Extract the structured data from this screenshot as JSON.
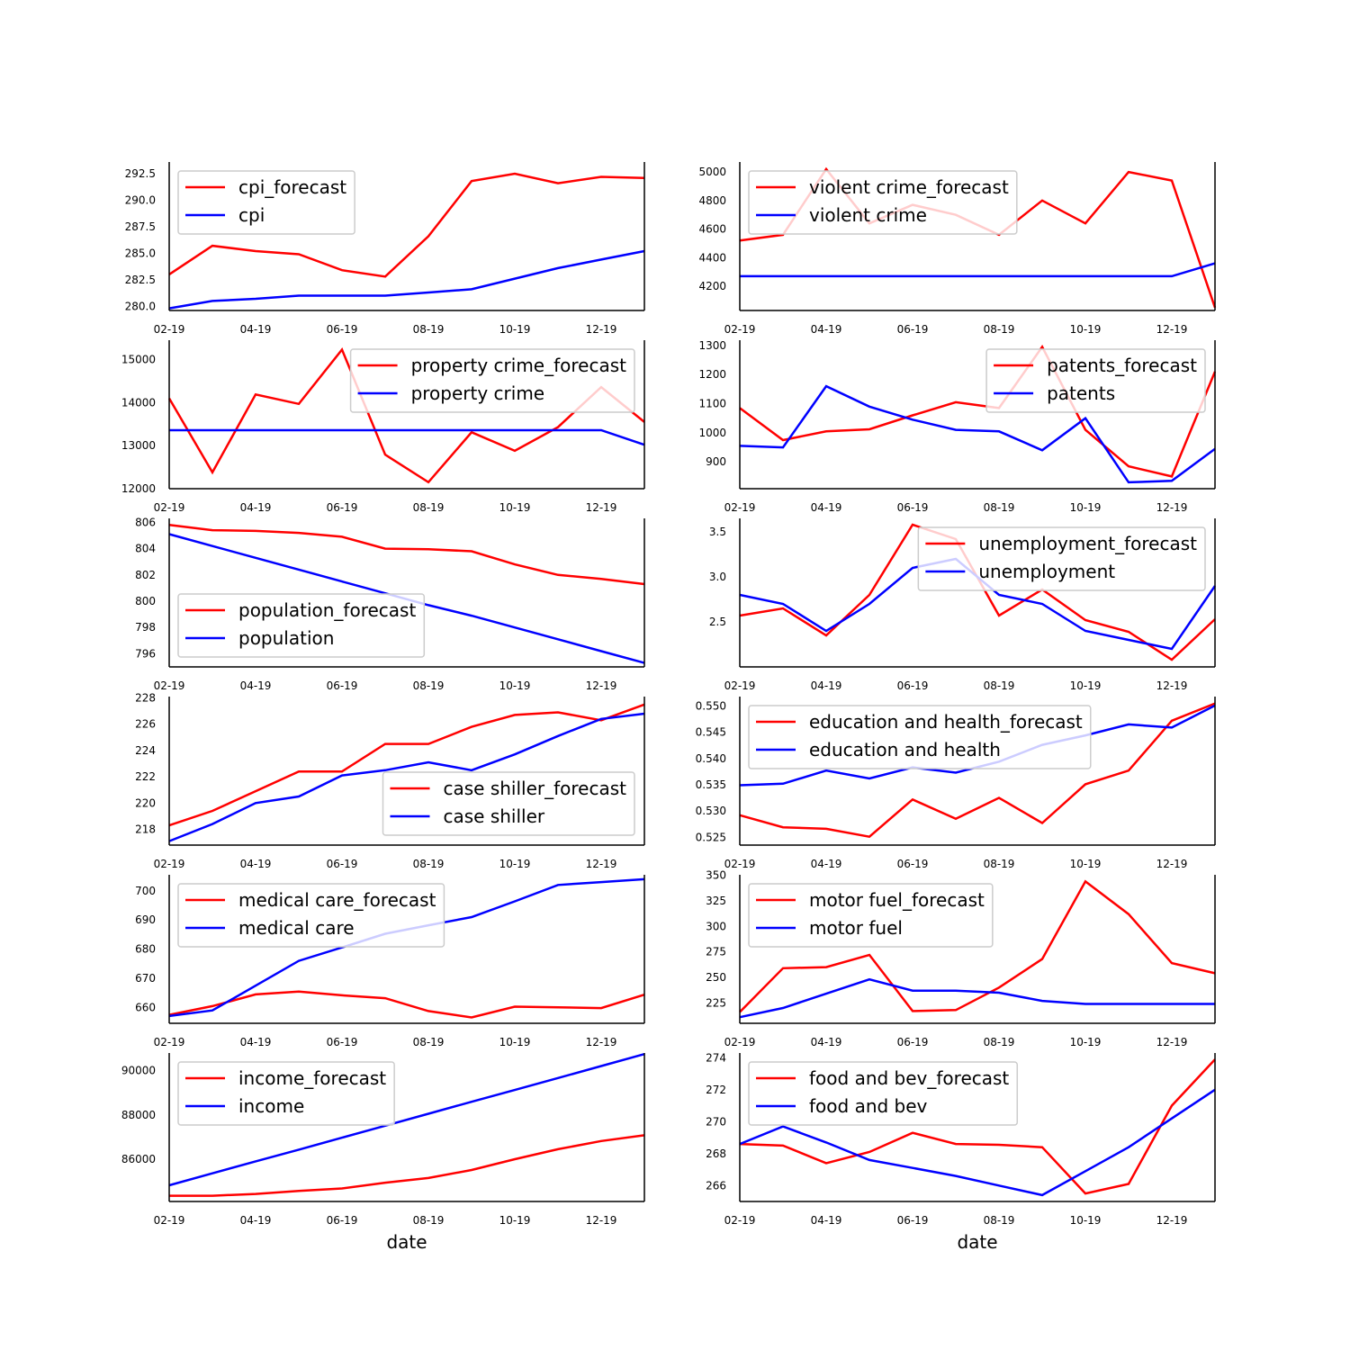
{
  "colors": {
    "forecast": "#ff0000",
    "actual": "#0000ff",
    "legend_frame": "#cccccc"
  },
  "x_dates": [
    "02-19",
    "03-19",
    "04-19",
    "05-19",
    "06-19",
    "07-19",
    "08-19",
    "09-19",
    "10-19",
    "11-19",
    "12-19",
    "01-20"
  ],
  "x_tick_labels": [
    "02-19",
    "04-19",
    "06-19",
    "08-19",
    "10-19",
    "12-19"
  ],
  "xlabel": "date",
  "chart_data": [
    {
      "type": "line",
      "xlabel": "",
      "ylabel": "",
      "ylim": [
        279.6,
        293.6
      ],
      "yticks": [
        280.0,
        282.5,
        285.0,
        287.5,
        290.0,
        292.5
      ],
      "ytick_labels": [
        "280.0",
        "282.5",
        "285.0",
        "287.5",
        "290.0",
        "292.5"
      ],
      "legend_loc": "upper-left",
      "series": [
        {
          "name": "cpi_forecast",
          "role": "forecast",
          "values": [
            283.0,
            285.7,
            285.2,
            284.9,
            283.4,
            282.8,
            286.6,
            291.8,
            292.5,
            291.6,
            292.2,
            292.1
          ]
        },
        {
          "name": "cpi",
          "role": "actual",
          "values": [
            279.8,
            280.5,
            280.7,
            281.0,
            281.0,
            281.0,
            281.3,
            281.6,
            282.6,
            283.6,
            284.4,
            285.2
          ]
        }
      ]
    },
    {
      "type": "line",
      "xlabel": "",
      "ylabel": "",
      "ylim": [
        4030,
        5070
      ],
      "yticks": [
        4200,
        4400,
        4600,
        4800,
        5000
      ],
      "ytick_labels": [
        "4200",
        "4400",
        "4600",
        "4800",
        "5000"
      ],
      "legend_loc": "upper-left",
      "series": [
        {
          "name": "violent crime_forecast",
          "role": "forecast",
          "values": [
            4520,
            4560,
            5020,
            4640,
            4770,
            4700,
            4560,
            4800,
            4640,
            5000,
            4940,
            4050
          ]
        },
        {
          "name": "violent crime",
          "role": "actual",
          "values": [
            4270,
            4270,
            4270,
            4270,
            4270,
            4270,
            4270,
            4270,
            4270,
            4270,
            4270,
            4360
          ]
        }
      ]
    },
    {
      "type": "line",
      "xlabel": "",
      "ylabel": "",
      "ylim": [
        12000,
        15450
      ],
      "yticks": [
        12000,
        13000,
        14000,
        15000
      ],
      "ytick_labels": [
        "12000",
        "13000",
        "14000",
        "15000"
      ],
      "legend_loc": "upper-right",
      "series": [
        {
          "name": "property crime_forecast",
          "role": "forecast",
          "values": [
            14100,
            12380,
            14190,
            13970,
            15230,
            12790,
            12150,
            13310,
            12880,
            13430,
            14360,
            13550
          ]
        },
        {
          "name": "property crime",
          "role": "actual",
          "values": [
            13360,
            13360,
            13360,
            13360,
            13360,
            13360,
            13360,
            13360,
            13360,
            13360,
            13360,
            13020
          ]
        }
      ]
    },
    {
      "type": "line",
      "xlabel": "",
      "ylabel": "",
      "ylim": [
        808,
        1318
      ],
      "yticks": [
        900,
        1000,
        1100,
        1200,
        1300
      ],
      "ytick_labels": [
        "900",
        "1000",
        "1100",
        "1200",
        "1300"
      ],
      "legend_loc": "upper-right",
      "series": [
        {
          "name": "patents_forecast",
          "role": "forecast",
          "values": [
            1085,
            975,
            1005,
            1012,
            1060,
            1105,
            1085,
            1295,
            1010,
            885,
            850,
            1210
          ]
        },
        {
          "name": "patents",
          "role": "actual",
          "values": [
            955,
            950,
            1160,
            1090,
            1045,
            1010,
            1005,
            940,
            1050,
            830,
            835,
            945
          ]
        }
      ]
    },
    {
      "type": "line",
      "xlabel": "",
      "ylabel": "",
      "ylim": [
        795.0,
        806.3
      ],
      "yticks": [
        796,
        798,
        800,
        802,
        804,
        806
      ],
      "ytick_labels": [
        "796",
        "798",
        "800",
        "802",
        "804",
        "806"
      ],
      "legend_loc": "lower-left",
      "series": [
        {
          "name": "population_forecast",
          "role": "forecast",
          "values": [
            805.8,
            805.4,
            805.35,
            805.2,
            804.9,
            804.0,
            803.95,
            803.8,
            802.8,
            802.0,
            801.7,
            801.3
          ]
        },
        {
          "name": "population",
          "role": "actual",
          "values": [
            805.1,
            804.2,
            803.3,
            802.4,
            801.5,
            800.6,
            799.7,
            798.9,
            798.0,
            797.1,
            796.2,
            795.3
          ]
        }
      ]
    },
    {
      "type": "line",
      "xlabel": "",
      "ylabel": "",
      "ylim": [
        2.0,
        3.65
      ],
      "yticks": [
        2.5,
        3.0,
        3.5
      ],
      "ytick_labels": [
        "2.5",
        "3.0",
        "3.5"
      ],
      "legend_loc": "upper-right",
      "series": [
        {
          "name": "unemployment_forecast",
          "role": "forecast",
          "values": [
            2.57,
            2.65,
            2.35,
            2.8,
            3.58,
            3.42,
            2.57,
            2.86,
            2.52,
            2.39,
            2.08,
            2.53
          ]
        },
        {
          "name": "unemployment",
          "role": "actual",
          "values": [
            2.8,
            2.7,
            2.4,
            2.7,
            3.1,
            3.2,
            2.8,
            2.7,
            2.4,
            2.3,
            2.2,
            2.9
          ]
        }
      ]
    },
    {
      "type": "line",
      "xlabel": "",
      "ylabel": "",
      "ylim": [
        216.8,
        228.1
      ],
      "yticks": [
        218,
        220,
        222,
        224,
        226,
        228
      ],
      "ytick_labels": [
        "218",
        "220",
        "222",
        "224",
        "226",
        "228"
      ],
      "legend_loc": "lower-right",
      "series": [
        {
          "name": "case shiller_forecast",
          "role": "forecast",
          "values": [
            218.3,
            219.4,
            220.9,
            222.4,
            222.4,
            224.5,
            224.5,
            225.8,
            226.7,
            226.9,
            226.3,
            227.5
          ]
        },
        {
          "name": "case shiller",
          "role": "actual",
          "values": [
            217.1,
            218.4,
            220.0,
            220.5,
            222.1,
            222.5,
            223.1,
            222.5,
            223.7,
            225.1,
            226.4,
            226.8
          ]
        }
      ]
    },
    {
      "type": "line",
      "xlabel": "",
      "ylabel": "",
      "ylim": [
        0.5235,
        0.5518
      ],
      "yticks": [
        0.525,
        0.53,
        0.535,
        0.54,
        0.545,
        0.55
      ],
      "ytick_labels": [
        "0.525",
        "0.530",
        "0.535",
        "0.540",
        "0.545",
        "0.550"
      ],
      "legend_loc": "upper-left",
      "series": [
        {
          "name": "education and health_forecast",
          "role": "forecast",
          "values": [
            0.5292,
            0.5269,
            0.5266,
            0.5251,
            0.5322,
            0.5285,
            0.5325,
            0.5277,
            0.5351,
            0.5377,
            0.5472,
            0.5505
          ]
        },
        {
          "name": "education and health",
          "role": "actual",
          "values": [
            0.5349,
            0.5352,
            0.5377,
            0.5362,
            0.5383,
            0.5373,
            0.5394,
            0.5426,
            0.5444,
            0.5465,
            0.5459,
            0.5501
          ]
        }
      ]
    },
    {
      "type": "line",
      "xlabel": "",
      "ylabel": "",
      "ylim": [
        654.6,
        705.5
      ],
      "yticks": [
        660,
        670,
        680,
        690,
        700
      ],
      "ytick_labels": [
        "660",
        "670",
        "680",
        "690",
        "700"
      ],
      "legend_loc": "upper-left",
      "series": [
        {
          "name": "medical care_forecast",
          "role": "forecast",
          "values": [
            657.5,
            660.5,
            664.5,
            665.5,
            664.2,
            663.2,
            658.8,
            656.6,
            660.3,
            660.1,
            659.8,
            664.4
          ]
        },
        {
          "name": "medical care",
          "role": "actual",
          "values": [
            657.1,
            659.0,
            667.5,
            676.0,
            680.6,
            685.3,
            688.2,
            691.0,
            696.4,
            702.0,
            703.0,
            704.0
          ]
        }
      ]
    },
    {
      "type": "line",
      "xlabel": "",
      "ylabel": "",
      "ylim": [
        205,
        350.5
      ],
      "yticks": [
        225,
        250,
        275,
        300,
        325,
        350
      ],
      "ytick_labels": [
        "225",
        "250",
        "275",
        "300",
        "325",
        "350"
      ],
      "legend_loc": "upper-left",
      "series": [
        {
          "name": "motor fuel_forecast",
          "role": "forecast",
          "values": [
            216,
            259,
            260,
            272,
            217,
            218,
            240,
            268,
            344,
            312,
            264,
            254
          ]
        },
        {
          "name": "motor fuel",
          "role": "actual",
          "values": [
            211,
            220,
            234,
            248,
            237,
            237,
            235,
            227,
            224,
            224,
            224,
            224
          ]
        }
      ]
    },
    {
      "type": "line",
      "xlabel": "",
      "ylabel": "",
      "ylim": [
        84100,
        90800
      ],
      "yticks": [
        86000,
        88000,
        90000
      ],
      "ytick_labels": [
        "86000",
        "88000",
        "90000"
      ],
      "legend_loc": "upper-left",
      "series": [
        {
          "name": "income_forecast",
          "role": "forecast",
          "values": [
            84360,
            84360,
            84440,
            84580,
            84690,
            84950,
            85160,
            85520,
            86010,
            86460,
            86830,
            87090
          ]
        },
        {
          "name": "income",
          "role": "actual",
          "values": [
            84830,
            85370,
            85910,
            86440,
            86980,
            87520,
            88060,
            88600,
            89130,
            89670,
            90210,
            90750
          ]
        }
      ]
    },
    {
      "type": "line",
      "xlabel": "",
      "ylabel": "",
      "ylim": [
        265.0,
        274.3
      ],
      "yticks": [
        266,
        268,
        270,
        272,
        274
      ],
      "ytick_labels": [
        "266",
        "268",
        "270",
        "272",
        "274"
      ],
      "legend_loc": "upper-left",
      "series": [
        {
          "name": "food and bev_forecast",
          "role": "forecast",
          "values": [
            268.6,
            268.5,
            267.4,
            268.1,
            269.3,
            268.6,
            268.55,
            268.4,
            265.5,
            266.1,
            271.0,
            273.9
          ]
        },
        {
          "name": "food and bev",
          "role": "actual",
          "values": [
            268.6,
            269.7,
            268.7,
            267.6,
            267.1,
            266.6,
            266.0,
            265.4,
            266.9,
            268.4,
            270.2,
            272.0
          ]
        }
      ]
    }
  ]
}
